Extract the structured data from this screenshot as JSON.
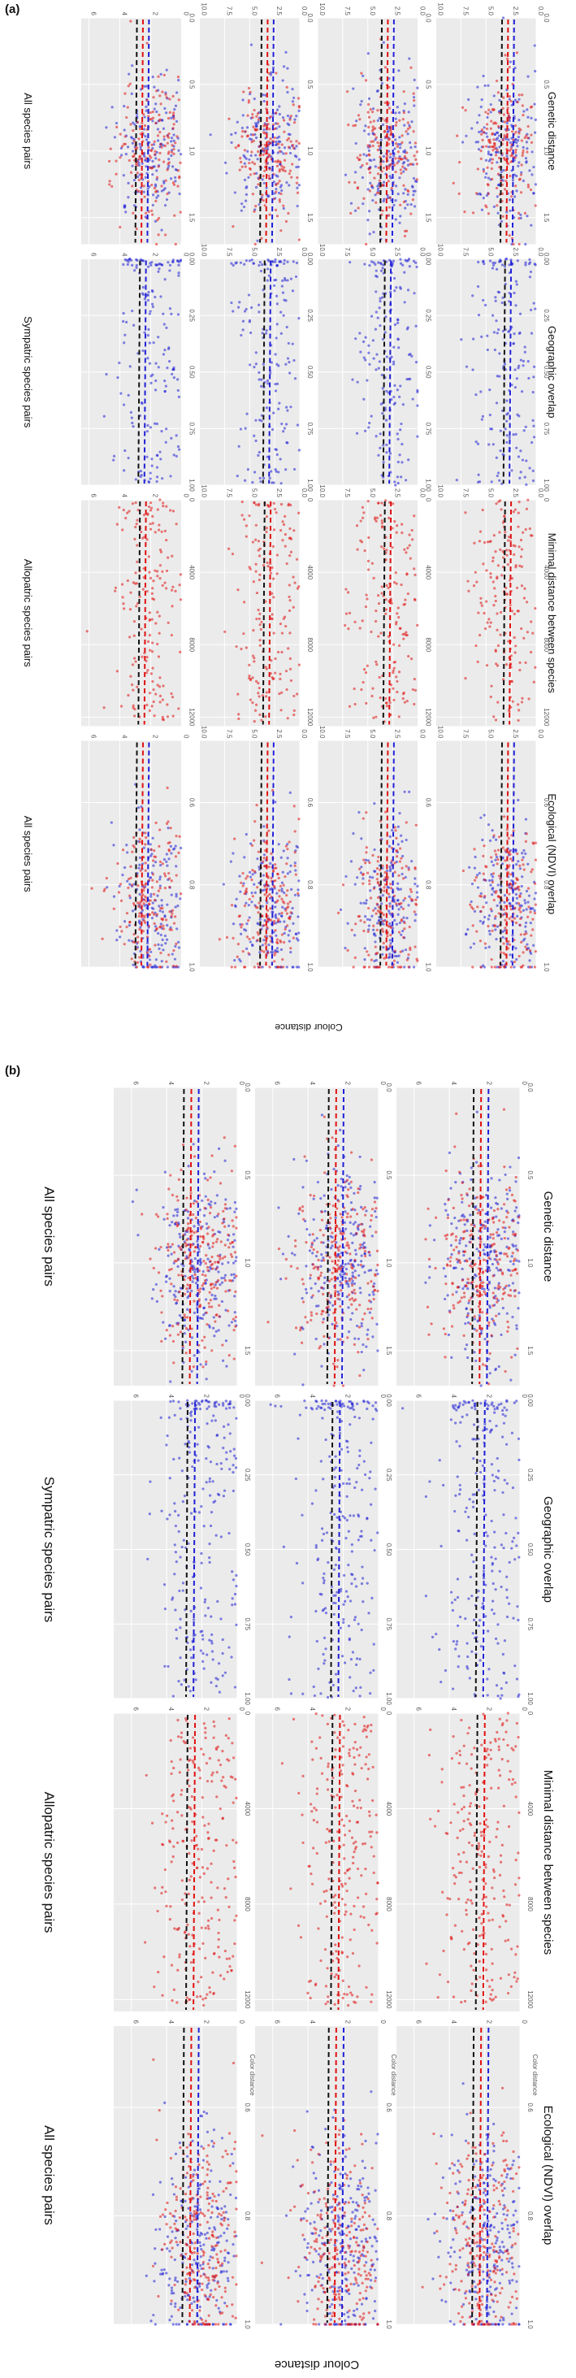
{
  "panel_labels": [
    "(a)",
    "(b)"
  ],
  "column_titles": [
    "All species pairs",
    "Sympatric species pairs",
    "Allopatric species pairs",
    "All species pairs"
  ],
  "x_axis_titles": [
    "Genetic distance",
    "Geographic overlap",
    "Minimal distance between species",
    "Ecological (NDVI) overlap"
  ],
  "y_axis_title_a": "Colour distance",
  "y_axis_title_b": "Colour distance",
  "small_y_title": "Color distance",
  "colors": {
    "sympatric": "#1f1fd6",
    "allopatric": "#e01010",
    "mixed_line": "#111111",
    "bg": "#ebebeb"
  },
  "chart_data": [
    {
      "type": "scatter",
      "title": "(a)",
      "rows": 4,
      "columns": [
        {
          "title": "All species pairs",
          "xlabel": "Genetic distance",
          "xlim": [
            0,
            1.7
          ],
          "xticks": [
            "0.0",
            "0.5",
            "1.0",
            "1.5"
          ],
          "series": [
            "sympatric",
            "allopatric"
          ],
          "center": 1.0,
          "spread": 0.28
        },
        {
          "title": "Sympatric species pairs",
          "xlabel": "Geographic overlap",
          "xlim": [
            0,
            1
          ],
          "xticks": [
            "0.00",
            "0.25",
            "0.50",
            "0.75",
            "1.00"
          ],
          "series": [
            "sympatric"
          ],
          "center": 0.4,
          "spread": 0.35
        },
        {
          "title": "Allopatric species pairs",
          "xlabel": "Minimal distance between species",
          "xlim": [
            0,
            12500
          ],
          "xticks": [
            "0",
            "4000",
            "8000",
            "12000"
          ],
          "series": [
            "allopatric"
          ],
          "center": 6000,
          "spread": 3500
        },
        {
          "title": "All species pairs",
          "xlabel": "Ecological (NDVI) overlap",
          "xlim": [
            0.45,
            1.0
          ],
          "xticks": [
            "0.6",
            "0.8",
            "1.0"
          ],
          "series": [
            "sympatric",
            "allopatric"
          ],
          "center": 0.85,
          "spread": 0.1
        }
      ],
      "ylabel": "Colour distance",
      "row_ylims": [
        [
          0,
          6.5
        ],
        [
          0,
          10
        ],
        [
          0,
          10
        ],
        [
          0,
          10
        ]
      ],
      "row_yticks": [
        [
          "0",
          "2",
          "4",
          "6"
        ],
        [
          "0.0",
          "2.5",
          "5.0",
          "7.5",
          "10.0"
        ],
        [
          "0.0",
          "2.5",
          "5.0",
          "7.5",
          "10.0"
        ],
        [
          "0.0",
          "2.5",
          "5.0",
          "7.5",
          "10.0"
        ]
      ],
      "trend_levels": [
        2.5,
        3.2,
        3.0,
        2.8
      ]
    },
    {
      "type": "scatter",
      "title": "(b)",
      "rows": 3,
      "columns": [
        {
          "title": "All species pairs",
          "xlabel": "Genetic distance",
          "xlim": [
            0,
            1.7
          ],
          "xticks": [
            "0.0",
            "0.5",
            "1.0",
            "1.5"
          ],
          "series": [
            "sympatric",
            "allopatric"
          ],
          "center": 1.0,
          "spread": 0.28
        },
        {
          "title": "Sympatric species pairs",
          "xlabel": "Geographic overlap",
          "xlim": [
            0,
            1
          ],
          "xticks": [
            "0.00",
            "0.25",
            "0.50",
            "0.75",
            "1.00"
          ],
          "series": [
            "sympatric"
          ],
          "center": 0.4,
          "spread": 0.35
        },
        {
          "title": "Allopatric species pairs",
          "xlabel": "Minimal distance between species",
          "xlim": [
            0,
            12500
          ],
          "xticks": [
            "0",
            "4000",
            "8000",
            "12000"
          ],
          "series": [
            "allopatric"
          ],
          "center": 6000,
          "spread": 3500
        },
        {
          "title": "All species pairs",
          "xlabel": "Ecological (NDVI) overlap",
          "xlim": [
            0.45,
            1.0
          ],
          "xticks": [
            "0.6",
            "0.8",
            "1.0"
          ],
          "series": [
            "sympatric",
            "allopatric"
          ],
          "center": 0.85,
          "spread": 0.1
        }
      ],
      "ylabel": "Colour distance",
      "row_ylims": [
        [
          0,
          7
        ],
        [
          0,
          7
        ],
        [
          0,
          7
        ]
      ],
      "row_yticks": [
        [
          "0",
          "2",
          "4",
          "6"
        ],
        [
          "0",
          "2",
          "4",
          "6"
        ],
        [
          "0",
          "2",
          "4",
          "6"
        ]
      ],
      "trend_levels": [
        2.6,
        2.4,
        2.2
      ]
    }
  ]
}
